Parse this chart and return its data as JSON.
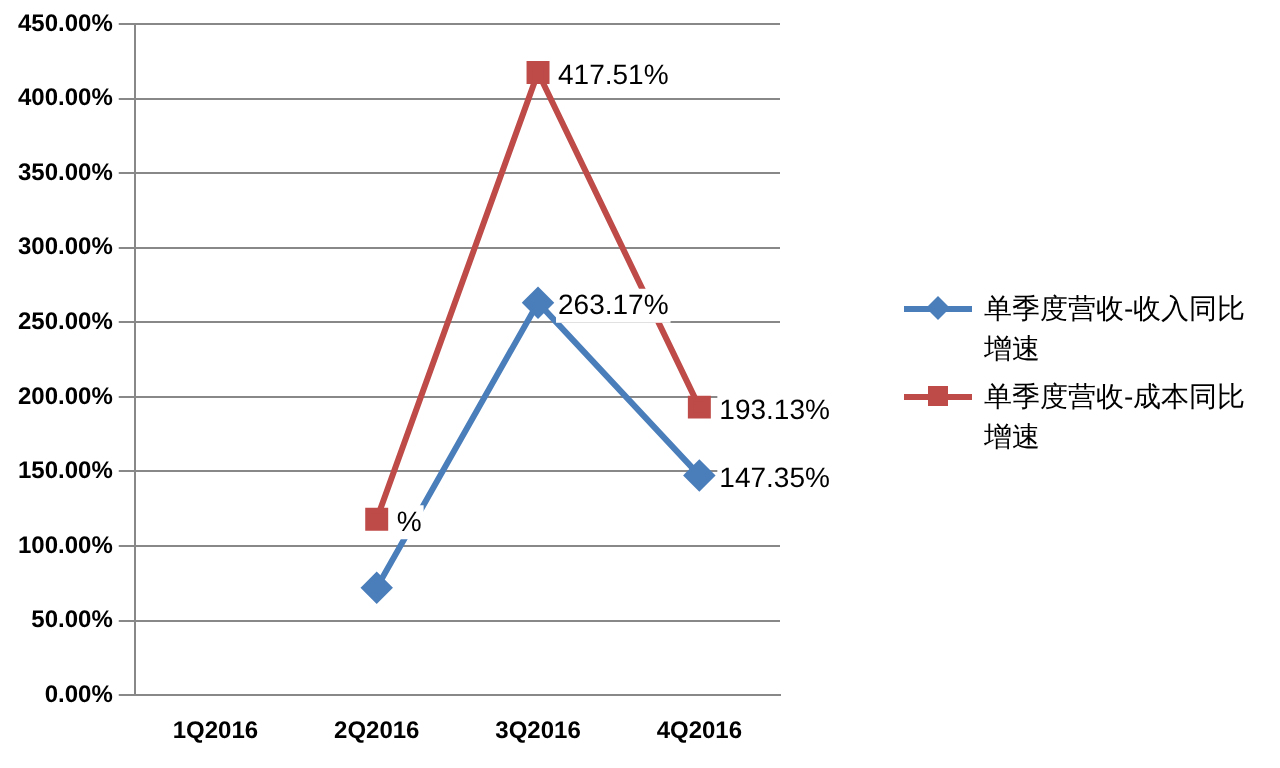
{
  "chart_data": {
    "type": "line",
    "categories": [
      "1Q2016",
      "2Q2016",
      "3Q2016",
      "4Q2016"
    ],
    "series": [
      {
        "name": "单季度营收-收入同比增速",
        "color": "#4a7ebb",
        "marker": "diamond",
        "values": [
          null,
          72,
          263.17,
          147.35
        ],
        "value_labels": [
          null,
          null,
          "263.17%",
          "147.35%"
        ]
      },
      {
        "name": "单季度营收-成本同比增速",
        "color": "#be4b48",
        "marker": "square",
        "values": [
          null,
          118,
          417.51,
          193.13
        ],
        "value_labels": [
          null,
          "%",
          "417.51%",
          "193.13%"
        ]
      }
    ],
    "ylim": [
      0,
      450
    ],
    "yticks": [
      {
        "value": 0,
        "label": "0.00%"
      },
      {
        "value": 50,
        "label": "50.00%"
      },
      {
        "value": 100,
        "label": "100.00%"
      },
      {
        "value": 150,
        "label": "150.00%"
      },
      {
        "value": 200,
        "label": "200.00%"
      },
      {
        "value": 250,
        "label": "250.00%"
      },
      {
        "value": 300,
        "label": "300.00%"
      },
      {
        "value": 350,
        "label": "350.00%"
      },
      {
        "value": 400,
        "label": "400.00%"
      },
      {
        "value": 450,
        "label": "450.00%"
      }
    ],
    "grid": "y",
    "legend": "right"
  }
}
